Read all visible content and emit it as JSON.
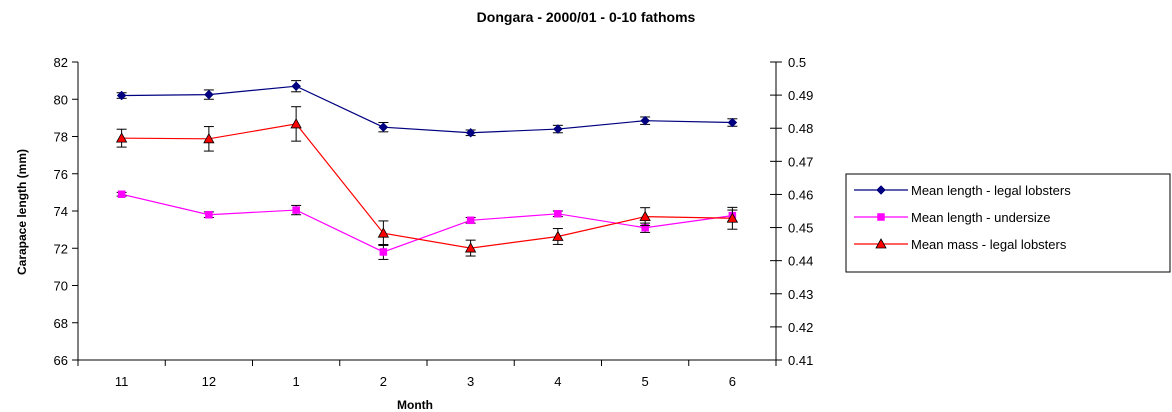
{
  "chart_data": {
    "type": "line",
    "title": "Dongara - 2000/01 - 0-10 fathoms",
    "xlabel": "Month",
    "ylabel": "Carapace length (mm)",
    "ylabel_right": "",
    "categories": [
      "11",
      "12",
      "1",
      "2",
      "3",
      "4",
      "5",
      "6"
    ],
    "ylim": [
      66,
      82
    ],
    "y_ticks": [
      "66",
      "68",
      "70",
      "72",
      "74",
      "76",
      "78",
      "80",
      "82"
    ],
    "y2lim": [
      0.41,
      0.5
    ],
    "y2_ticks": [
      "0.41",
      "0.42",
      "0.43",
      "0.44",
      "0.45",
      "0.46",
      "0.47",
      "0.48",
      "0.49",
      "0.5"
    ],
    "grid": false,
    "legend_position": "right",
    "series": [
      {
        "name": "Mean length - legal lobsters",
        "axis": "left",
        "color": "#000080",
        "marker": "diamond",
        "values": [
          80.2,
          80.25,
          80.7,
          78.5,
          78.2,
          78.4,
          78.85,
          78.75
        ],
        "errors": [
          0.15,
          0.25,
          0.3,
          0.25,
          0.15,
          0.2,
          0.2,
          0.2
        ]
      },
      {
        "name": "Mean length - undersize",
        "axis": "left",
        "color": "#ff00ff",
        "marker": "square",
        "values": [
          74.9,
          73.8,
          74.05,
          71.8,
          73.5,
          73.85,
          73.1,
          73.75
        ],
        "errors": [
          0.1,
          0.15,
          0.25,
          0.4,
          0.15,
          0.15,
          0.25,
          0.3
        ]
      },
      {
        "name": "Mean mass - legal lobsters",
        "axis": "right",
        "color": "#ff0000",
        "marker": "triangle",
        "values": [
          0.477,
          0.4768,
          0.4813,
          0.4483,
          0.4438,
          0.4473,
          0.4533,
          0.4528
        ],
        "errors": [
          0.0027,
          0.0037,
          0.0052,
          0.0037,
          0.0024,
          0.0024,
          0.0027,
          0.0033
        ]
      }
    ]
  }
}
